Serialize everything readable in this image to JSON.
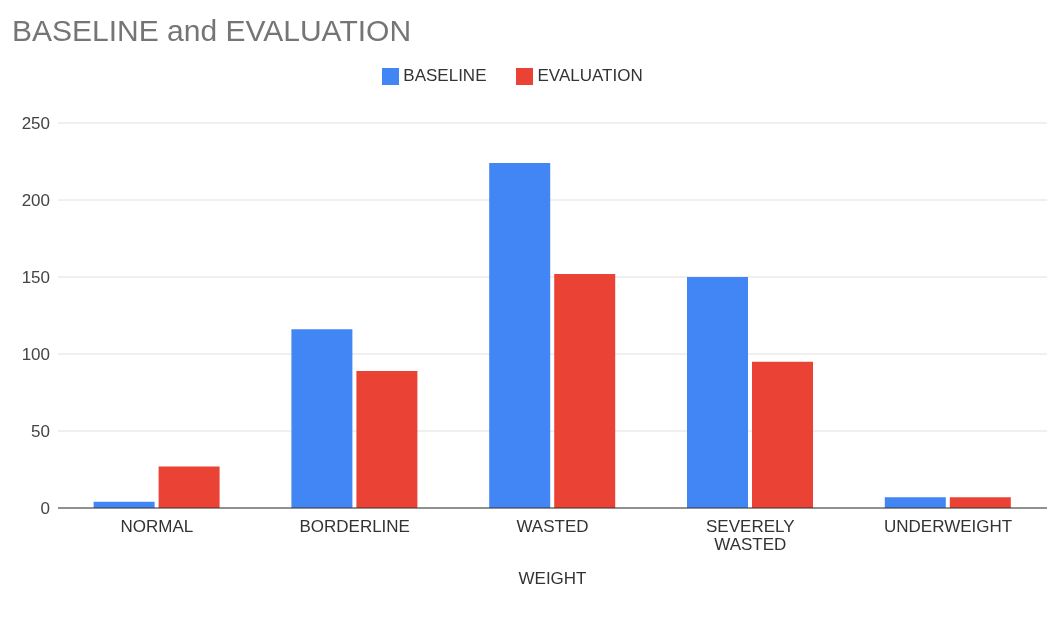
{
  "chart_data": {
    "type": "bar",
    "title": "BASELINE and EVALUATION",
    "xlabel": "WEIGHT",
    "categories": [
      "NORMAL",
      "BORDERLINE",
      "WASTED",
      "SEVERELY WASTED",
      "UNDERWEIGHT"
    ],
    "series": [
      {
        "name": "BASELINE",
        "color": "#4285f4",
        "values": [
          4,
          116,
          224,
          150,
          7
        ]
      },
      {
        "name": "EVALUATION",
        "color": "#ea4335",
        "values": [
          27,
          89,
          152,
          95,
          7
        ]
      }
    ],
    "ylim": [
      0,
      250
    ],
    "yticks": [
      0,
      50,
      100,
      150,
      200,
      250
    ],
    "grid": "y",
    "legend": "top"
  }
}
